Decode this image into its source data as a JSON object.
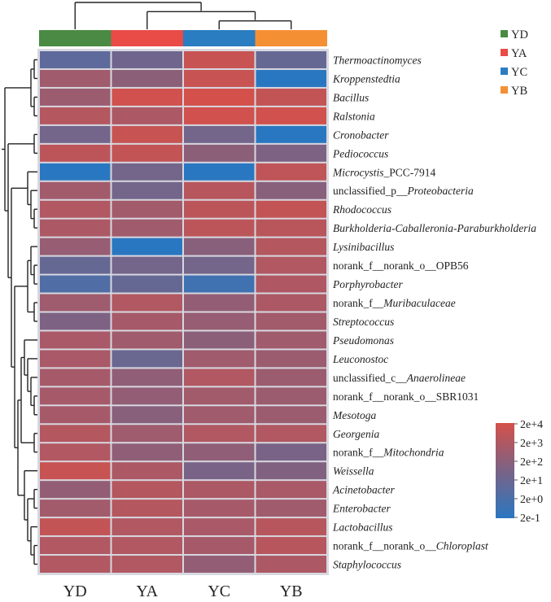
{
  "chart_data": {
    "type": "heatmap",
    "title": "",
    "columns": [
      "YD",
      "YA",
      "YC",
      "YB"
    ],
    "column_group_colors": {
      "YD": "#4a8a44",
      "YA": "#e94b47",
      "YC": "#2a7dc0",
      "YB": "#f58f33"
    },
    "legend": {
      "placement": "top-right",
      "entries": [
        {
          "label": "YD",
          "color": "#4a8a44"
        },
        {
          "label": "YA",
          "color": "#e94b47"
        },
        {
          "label": "YC",
          "color": "#2a7dc0"
        },
        {
          "label": "YB",
          "color": "#f58f33"
        }
      ]
    },
    "colorbar": {
      "scale": "log10",
      "min": 0.2,
      "max": 20000,
      "low_color": "#2a77c1",
      "mid_color": "#7a6385",
      "high_color": "#d5504a",
      "ticks": [
        "2e+4",
        "2e+3",
        "2e+2",
        "2e+1",
        "2e+0",
        "2e-1"
      ],
      "tick_values": [
        20000,
        2000,
        200,
        20,
        2,
        0.2
      ],
      "placement": "bottom-right"
    },
    "rows": [
      {
        "label": "Thermoactinomyces",
        "parts": [
          {
            "t": "Thermoactinomyces",
            "i": true
          }
        ],
        "values": [
          8,
          30,
          8000,
          15
        ]
      },
      {
        "label": "Kroppenstedtia",
        "parts": [
          {
            "t": "Kroppenstedtia",
            "i": true
          }
        ],
        "values": [
          700,
          200,
          8000,
          0.2
        ]
      },
      {
        "label": "Bacillus",
        "parts": [
          {
            "t": "Bacillus",
            "i": true
          }
        ],
        "values": [
          500,
          15000,
          18000,
          6000
        ]
      },
      {
        "label": "Ralstonia",
        "parts": [
          {
            "t": "Ralstonia",
            "i": true
          }
        ],
        "values": [
          2500,
          1500,
          15000,
          15000
        ]
      },
      {
        "label": "Cronobacter",
        "parts": [
          {
            "t": "Cronobacter",
            "i": true
          }
        ],
        "values": [
          40,
          8000,
          40,
          0.2
        ]
      },
      {
        "label": "Pediococcus",
        "parts": [
          {
            "t": "Pediococcus",
            "i": true
          }
        ],
        "values": [
          4000,
          6000,
          200,
          80
        ]
      },
      {
        "label": "Microcystis_PCC-7914",
        "parts": [
          {
            "t": "Microcystis",
            "i": true
          },
          {
            "t": "_PCC-7914",
            "i": false
          }
        ],
        "values": [
          0.2,
          40,
          0.2,
          5000
        ]
      },
      {
        "label": "unclassified_p__Proteobacteria",
        "parts": [
          {
            "t": "unclassified_p__",
            "i": false
          },
          {
            "t": "Proteobacteria",
            "i": true
          }
        ],
        "values": [
          800,
          40,
          3000,
          150
        ]
      },
      {
        "label": "Rhodococcus",
        "parts": [
          {
            "t": "Rhodococcus",
            "i": true
          }
        ],
        "values": [
          2000,
          800,
          4000,
          6000
        ]
      },
      {
        "label": "Burkholderia-Caballeronia-Paraburkholderia",
        "parts": [
          {
            "t": "Burkholderia-Caballeronia-Paraburkholderia",
            "i": true
          }
        ],
        "values": [
          1500,
          700,
          4000,
          3500
        ]
      },
      {
        "label": "Lysinibacillus",
        "parts": [
          {
            "t": "Lysinibacillus",
            "i": true
          }
        ],
        "values": [
          400,
          0.2,
          150,
          2500
        ]
      },
      {
        "label": "norank_f__norank_o__OPB56",
        "parts": [
          {
            "t": "norank_f__norank_o__OPB56",
            "i": false
          }
        ],
        "values": [
          15,
          40,
          40,
          2000
        ]
      },
      {
        "label": "Porphyrobacter",
        "parts": [
          {
            "t": "Porphyrobacter",
            "i": true
          }
        ],
        "values": [
          3,
          15,
          1,
          1800
        ]
      },
      {
        "label": "norank_f__Muribaculaceae",
        "parts": [
          {
            "t": "norank_f__",
            "i": false
          },
          {
            "t": "Muribaculaceae",
            "i": true
          }
        ],
        "values": [
          600,
          2000,
          300,
          1500
        ]
      },
      {
        "label": "Streptococcus",
        "parts": [
          {
            "t": "Streptococcus",
            "i": true
          }
        ],
        "values": [
          80,
          1000,
          400,
          800
        ]
      },
      {
        "label": "Pseudomonas",
        "parts": [
          {
            "t": "Pseudomonas",
            "i": true
          }
        ],
        "values": [
          1200,
          700,
          200,
          700
        ]
      },
      {
        "label": "Leuconostoc",
        "parts": [
          {
            "t": "Leuconostoc",
            "i": true
          }
        ],
        "values": [
          1200,
          20,
          700,
          500
        ]
      },
      {
        "label": "unclassified_c__Anaerolineae",
        "parts": [
          {
            "t": "unclassified_c__",
            "i": false
          },
          {
            "t": "Anaerolineae",
            "i": true
          }
        ],
        "values": [
          1000,
          250,
          2000,
          500
        ]
      },
      {
        "label": "norank_f__norank_o__SBR1031",
        "parts": [
          {
            "t": "norank_f__norank_o__SBR1031",
            "i": false
          }
        ],
        "values": [
          1000,
          300,
          800,
          500
        ]
      },
      {
        "label": "Mesotoga",
        "parts": [
          {
            "t": "Mesotoga",
            "i": true
          }
        ],
        "values": [
          1000,
          150,
          700,
          500
        ]
      },
      {
        "label": "Georgenia",
        "parts": [
          {
            "t": "Georgenia",
            "i": true
          }
        ],
        "values": [
          2500,
          600,
          2000,
          2000
        ]
      },
      {
        "label": "norank_f__Mitochondria",
        "parts": [
          {
            "t": "norank_f__",
            "i": false
          },
          {
            "t": "Mitochondria",
            "i": true
          }
        ],
        "values": [
          2000,
          250,
          250,
          60
        ]
      },
      {
        "label": "Weissella",
        "parts": [
          {
            "t": "Weissella",
            "i": true
          }
        ],
        "values": [
          8000,
          1500,
          60,
          100
        ]
      },
      {
        "label": "Acinetobacter",
        "parts": [
          {
            "t": "Acinetobacter",
            "i": true
          }
        ],
        "values": [
          300,
          2500,
          1500,
          1200
        ]
      },
      {
        "label": "Enterobacter",
        "parts": [
          {
            "t": "Enterobacter",
            "i": true
          }
        ],
        "values": [
          800,
          2500,
          1000,
          700
        ]
      },
      {
        "label": "Lactobacillus",
        "parts": [
          {
            "t": "Lactobacillus",
            "i": true
          }
        ],
        "values": [
          6000,
          2000,
          1200,
          3000
        ]
      },
      {
        "label": "norank_f__norank_o__Chloroplast",
        "parts": [
          {
            "t": "norank_f__norank_o__",
            "i": false
          },
          {
            "t": "Chloroplast",
            "i": true
          }
        ],
        "values": [
          2000,
          2000,
          1000,
          3000
        ]
      },
      {
        "label": "Staphylococcus",
        "parts": [
          {
            "t": "Staphylococcus",
            "i": true
          }
        ],
        "values": [
          2000,
          2000,
          300,
          1500
        ]
      }
    ],
    "column_dendrogram": "(YD,(YA,(YC,YB)))",
    "row_dendrogram": "((((Thermoactinomyces,Kroppenstedtia),(Bacillus,Ralstonia)),((Cronobacter,Pediococcus),((Microcystis_PCC-7914,(unclassified_p__Proteobacteria,(Rhodococcus,Burkholderia-Caballeronia-Paraburkholderia))),(((Lysinibacillus,(norank_f__norank_o__OPB56,Porphyrobacter)),(norank_f__Muribaculaceae,Streptococcus)),(((Pseudomonas,(Leuconostoc,(unclassified_c__Anaerolineae,(norank_f__norank_o__SBR1031,Mesotoga)))),(Georgenia,norank_f__Mitochondria)),(Weissella,((Acinetobacter,Enterobacter),(Lactobacillus,(norank_f__norank_o__Chloroplast,Staphylococcus))))))))))",
    "xlabel": "",
    "ylabel": ""
  }
}
